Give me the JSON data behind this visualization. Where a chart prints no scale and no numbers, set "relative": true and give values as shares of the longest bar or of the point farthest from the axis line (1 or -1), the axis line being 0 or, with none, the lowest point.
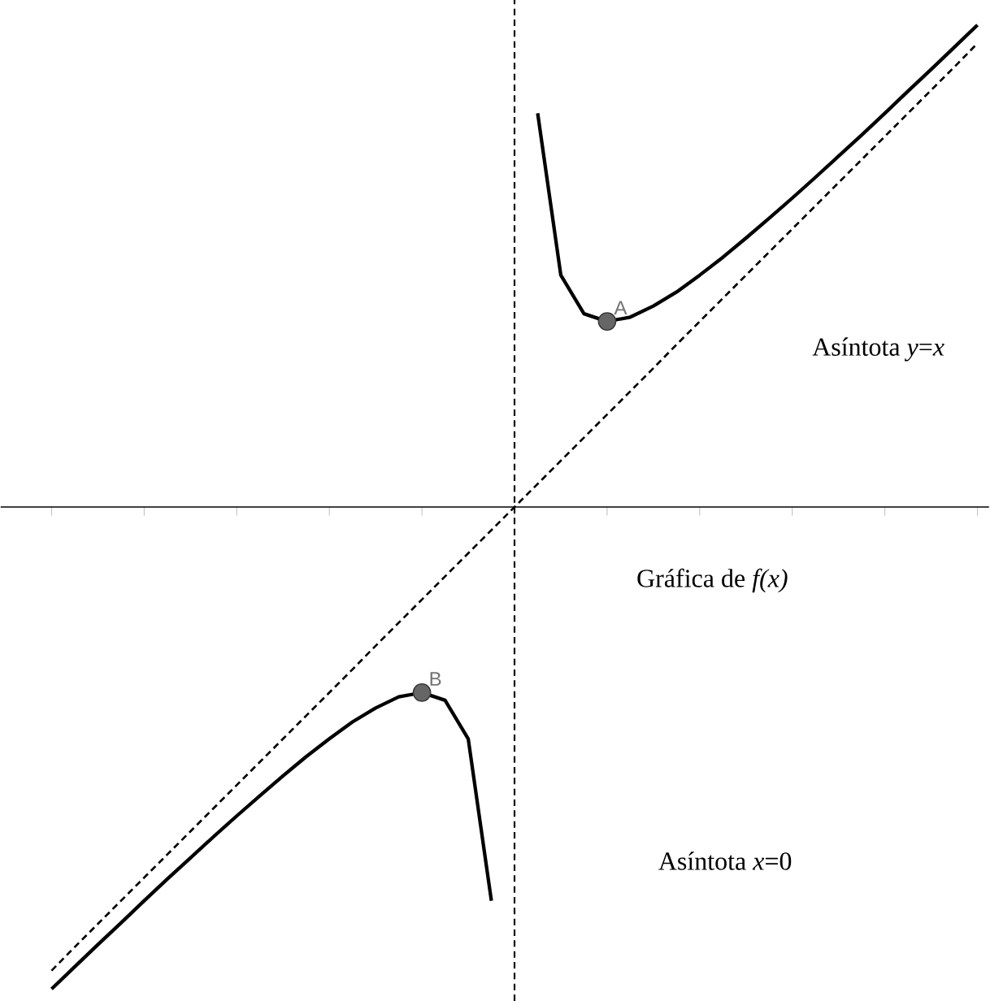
{
  "chart_data": {
    "type": "line",
    "relative": true,
    "categories": [
      null,
      null,
      null,
      null,
      null,
      null,
      null,
      null,
      null,
      null,
      null,
      null,
      null,
      null,
      null,
      null,
      null,
      null,
      null,
      null,
      null,
      null,
      null,
      null,
      null,
      null,
      null,
      null,
      null,
      null,
      null,
      null,
      null,
      null,
      null,
      null,
      null,
      null,
      null,
      null,
      null,
      null,
      null
    ],
    "series": [
      {
        "color": "#000000",
        "line_style": "solid",
        "values": [
          null,
          null,
          -1.0,
          -0.954,
          -0.908,
          -0.863,
          -0.817,
          -0.772,
          -0.728,
          -0.684,
          -0.641,
          -0.599,
          -0.558,
          -0.518,
          -0.481,
          -0.446,
          -0.417,
          -0.394,
          -0.385,
          -0.401,
          -0.481,
          -0.817,
          null,
          0.817,
          0.481,
          0.401,
          0.385,
          0.394,
          0.417,
          0.446,
          0.481,
          0.518,
          0.558,
          0.599,
          0.641,
          0.684,
          0.728,
          0.772,
          0.817,
          0.863,
          0.908,
          0.954,
          1.0
        ]
      },
      {
        "color": "#000000",
        "line_style": "dashed",
        "values": [
          null,
          null,
          -0.962,
          -0.913,
          -0.865,
          -0.817,
          -0.769,
          -0.721,
          -0.673,
          -0.625,
          -0.577,
          -0.529,
          -0.481,
          -0.433,
          -0.385,
          -0.337,
          -0.288,
          -0.24,
          -0.192,
          -0.144,
          -0.096,
          -0.048,
          0,
          0.048,
          0.096,
          0.144,
          0.192,
          0.24,
          0.288,
          0.337,
          0.385,
          0.433,
          0.481,
          0.529,
          0.577,
          0.625,
          0.673,
          0.721,
          0.769,
          0.817,
          0.865,
          0.913,
          0.962
        ]
      }
    ],
    "annotations": [
      {
        "text": "A",
        "y": 0.385
      },
      {
        "text": "B",
        "y": -0.385
      },
      "Asíntota *y*=*x*",
      "Gráfica de *f(x)*",
      "Asíntota *x*=0"
    ],
    "grid": false
  }
}
